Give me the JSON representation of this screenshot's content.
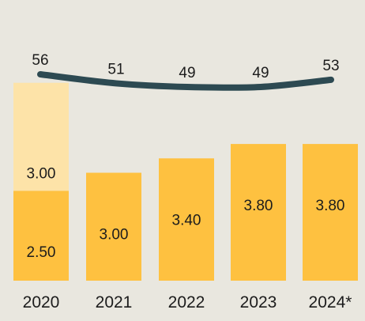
{
  "chart_data": {
    "type": "bar",
    "categories": [
      "2020",
      "2021",
      "2022",
      "2023",
      "2024*"
    ],
    "series": [
      {
        "values": [
          2.5,
          3.0,
          3.4,
          3.8,
          3.8
        ],
        "labels": [
          "2.50",
          "3.00",
          "3.40",
          "3.80",
          "3.80"
        ]
      },
      {
        "values": [
          3.0,
          0,
          0,
          0,
          0
        ],
        "labels": [
          "3.00",
          "",
          "",
          "",
          ""
        ]
      }
    ],
    "line": {
      "values": [
        56,
        51,
        49,
        49,
        53
      ],
      "labels": [
        "56",
        "51",
        "49",
        "49",
        "53"
      ]
    },
    "colors": {
      "bar": "#fec140",
      "bar_upper": "#fde3a8",
      "line": "#2d4a52",
      "text": "#1c1c1c",
      "background": "#e9e7df"
    },
    "ylim": [
      0,
      7.45
    ],
    "line_ylim": [
      35,
      70
    ]
  }
}
